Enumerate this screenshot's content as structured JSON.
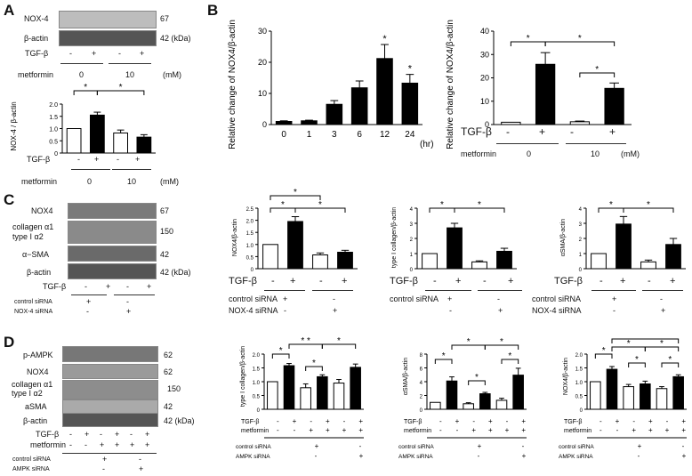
{
  "panels": {
    "A": "A",
    "B": "B",
    "C": "C",
    "D": "D"
  },
  "common": {
    "tgf": "TGF-β",
    "metformin": "metformin",
    "minus": "-",
    "plus": "+",
    "star": "*",
    "dstar": "* *",
    "mM": "(mM)",
    "kda": "42 (kDa)",
    "hr": "(hr)"
  },
  "A": {
    "blots": {
      "nox4": "NOX-4",
      "bactin": "β-actin",
      "nox4_kda": "67",
      "actin_kda": "42 (kDa)"
    },
    "tgf_row": [
      "-",
      "+",
      "-",
      "+"
    ],
    "metformin_doses": [
      "0",
      "10"
    ],
    "chart_data": {
      "type": "bar",
      "ylabel": "NOX-4 / β-actin",
      "ylim": [
        0,
        2.0
      ],
      "yticks": [
        "0",
        "0.5",
        "1.0",
        "1.5",
        "2.0"
      ],
      "categories": [
        "TGF-β - / metformin 0",
        "TGF-β + / metformin 0",
        "TGF-β - / metformin 10",
        "TGF-β + / metformin 10"
      ],
      "values": [
        1.0,
        1.55,
        0.82,
        0.65
      ],
      "errors": [
        0,
        0.12,
        0.12,
        0.1
      ],
      "fills": [
        "white",
        "black",
        "white",
        "black"
      ]
    }
  },
  "B": {
    "time_chart": {
      "type": "bar",
      "ylabel": "Relative change of NOX4/β-actin",
      "ylim": [
        0,
        30
      ],
      "yticks": [
        "0",
        "10",
        "20",
        "30"
      ],
      "categories": [
        "0",
        "1",
        "3",
        "6",
        "12",
        "24"
      ],
      "values": [
        1.0,
        1.2,
        6.5,
        11.8,
        21.2,
        13.3
      ],
      "errors": [
        0.2,
        0.2,
        1.2,
        2.2,
        4.5,
        2.8
      ]
    },
    "met_chart": {
      "type": "bar",
      "ylabel": "Relative change of NOX4/β-actin",
      "ylim": [
        0,
        40
      ],
      "yticks": [
        "0",
        "10",
        "20",
        "30",
        "40"
      ],
      "categories": [
        "TGF-β - / metformin 0",
        "TGF-β + / metformin 0",
        "TGF-β - / metformin 10",
        "TGF-β + / metformin 10"
      ],
      "values": [
        1.0,
        25.8,
        1.2,
        15.5
      ],
      "errors": [
        0,
        5,
        0.3,
        2.3
      ],
      "fills": [
        "white",
        "black",
        "white",
        "black"
      ]
    }
  },
  "C": {
    "blots": {
      "nox4": "NOX4",
      "col1": "collagen α1",
      "col2": "type I   α2",
      "sma": "α−SMA",
      "bactin": "β-actin",
      "k67": "67",
      "k150": "150",
      "k42": "42",
      "k42b": "42 (kDa)"
    },
    "control_sirna": "control siRNA",
    "nox4_sirna": "NOX-4 siRNA",
    "chart_data": [
      {
        "type": "bar",
        "ylabel": "NOX4/β-actin",
        "ylim": [
          0,
          2.5
        ],
        "yticks": [
          "0",
          "0.5",
          "1.0",
          "1.5",
          "2.0",
          "2.5"
        ],
        "values": [
          1.0,
          1.95,
          0.57,
          0.68
        ],
        "errors": [
          0,
          0.2,
          0.08,
          0.08
        ]
      },
      {
        "type": "bar",
        "ylabel": "type I collagen/β-actin",
        "ylim": [
          0,
          4
        ],
        "yticks": [
          "0",
          "1",
          "2",
          "3",
          "4"
        ],
        "values": [
          1.0,
          2.7,
          0.45,
          1.15
        ],
        "errors": [
          0,
          0.3,
          0.07,
          0.2
        ]
      },
      {
        "type": "bar",
        "ylabel": "αSMA/β-actin",
        "ylim": [
          0,
          4
        ],
        "yticks": [
          "0",
          "1",
          "2",
          "3",
          "4"
        ],
        "values": [
          1.0,
          2.95,
          0.45,
          1.6
        ],
        "errors": [
          0,
          0.5,
          0.12,
          0.4
        ]
      }
    ]
  },
  "D": {
    "blots": {
      "pampk": "p-AMPK",
      "nox4": "NOX4",
      "col1": "collagen α1",
      "col2": "type I   α2",
      "sma": "aSMA",
      "bactin": "β-actin",
      "k62a": "62",
      "k62b": "62",
      "k150": "150",
      "k42": "42",
      "k42b": "42 (kDa)"
    },
    "control_sirna": "control siRNA",
    "ampk_sirna": "AMPK siRNA",
    "tgf_row": [
      "-",
      "+",
      "-",
      "+",
      "-",
      "+"
    ],
    "met_row": [
      "-",
      "-",
      "+",
      "+",
      "+",
      "+"
    ],
    "chart_data": [
      {
        "type": "bar",
        "ylabel": "type I collagen/β-actin",
        "ylim": [
          0,
          2.0
        ],
        "yticks": [
          "0",
          "0.5",
          "1.0",
          "1.5",
          "2.0"
        ],
        "values": [
          1.0,
          1.58,
          0.78,
          1.18,
          0.95,
          1.52
        ],
        "errors": [
          0,
          0.08,
          0.14,
          0.07,
          0.13,
          0.12
        ]
      },
      {
        "type": "bar",
        "ylabel": "αSMA/β-actin",
        "ylim": [
          0,
          8
        ],
        "yticks": [
          "0",
          "2",
          "4",
          "6",
          "8"
        ],
        "values": [
          1.0,
          4.1,
          0.8,
          2.25,
          1.3,
          4.95
        ],
        "errors": [
          0,
          0.6,
          0.15,
          0.2,
          0.3,
          1.0
        ]
      },
      {
        "type": "bar",
        "ylabel": "NOX4/β-actin",
        "ylim": [
          0,
          2.0
        ],
        "yticks": [
          "0",
          "0.5",
          "1.0",
          "1.5",
          "2.0"
        ],
        "values": [
          1.0,
          1.45,
          0.82,
          0.92,
          0.75,
          1.18
        ],
        "errors": [
          0,
          0.1,
          0.08,
          0.1,
          0.07,
          0.07
        ]
      }
    ]
  }
}
